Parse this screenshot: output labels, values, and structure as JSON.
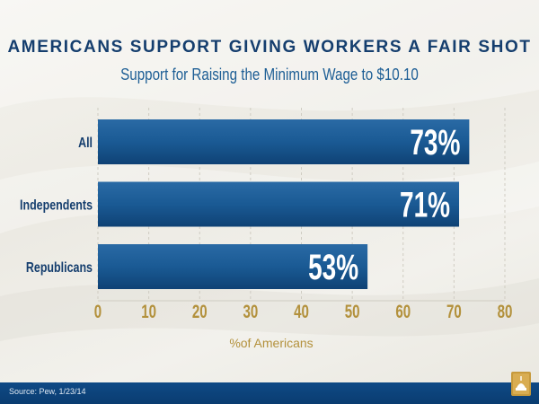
{
  "title": "AMERICANS SUPPORT GIVING WORKERS A FAIR SHOT",
  "subtitle": "Support for Raising the Minimum Wage to $10.10",
  "source": "Source: Pew, 1/23/14",
  "colors": {
    "bar": "#1a5a94",
    "bar_dark": "#0f4275",
    "tick": "#b3913c",
    "footer": "#0d4580",
    "title": "#153e6e"
  },
  "chart_data": {
    "type": "bar",
    "orientation": "horizontal",
    "categories": [
      "All",
      "Independents",
      "Republicans"
    ],
    "values": [
      73,
      71,
      53
    ],
    "data_labels": [
      "73%",
      "71%",
      "53%"
    ],
    "xlabel": "%of Americans",
    "ylabel": "",
    "xlim": [
      0,
      80
    ],
    "xticks": [
      "0",
      "10",
      "20",
      "30",
      "40",
      "50",
      "60",
      "70",
      "80"
    ],
    "grid": true
  }
}
